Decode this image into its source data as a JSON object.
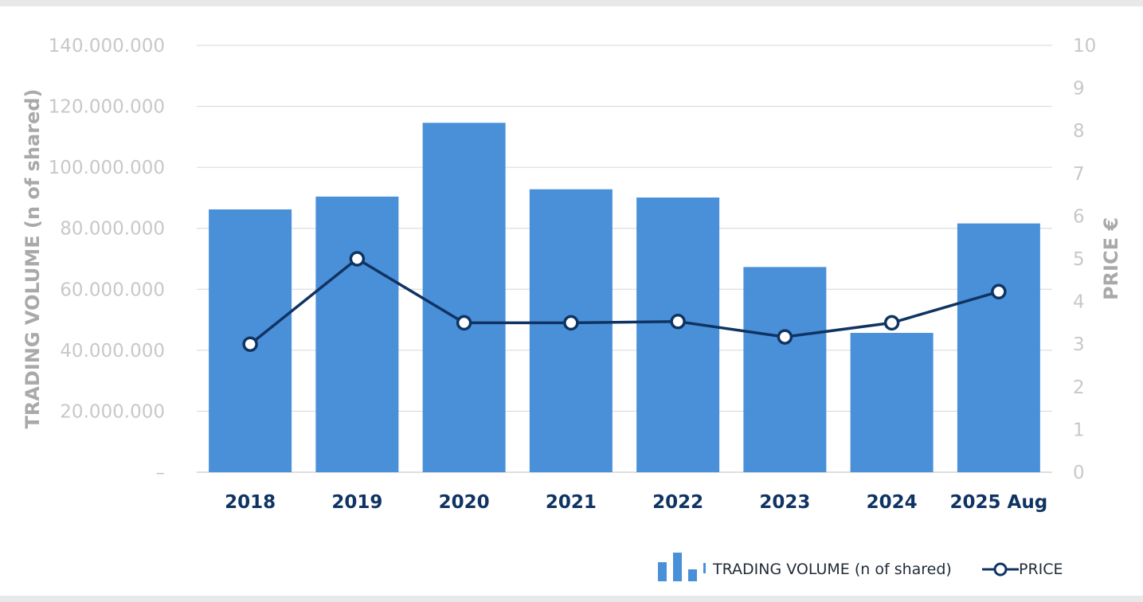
{
  "chart_data": {
    "type": "bar",
    "categories": [
      "2018",
      "2019",
      "2020",
      "2021",
      "2022",
      "2023",
      "2024",
      "2025 Aug"
    ],
    "series": [
      {
        "name": "TRADING  VOLUME (n of shared)",
        "type": "bar",
        "axis": "left",
        "color": "#4a90d9",
        "values": [
          86200000,
          90400000,
          114600000,
          92800000,
          90100000,
          67300000,
          45700000,
          81600000
        ]
      },
      {
        "name": "PRICE",
        "type": "line",
        "axis": "right",
        "color": "#0f3463",
        "values": [
          3.0,
          5.0,
          3.5,
          3.5,
          3.53,
          3.17,
          3.5,
          4.23
        ]
      }
    ],
    "y_left": {
      "title": "TRADING  VOLUME (n of shared)",
      "range": [
        0,
        140000000
      ],
      "tick_labels": [
        "–",
        "20.000.000",
        "40.000.000",
        "60.000.000",
        "80.000.000",
        "100.000.000",
        "120.000.000",
        "140.000.000"
      ]
    },
    "y_right": {
      "title": "PRICE €",
      "range": [
        0,
        10
      ],
      "tick_labels": [
        "0",
        "1",
        "2",
        "3",
        "4",
        "5",
        "6",
        "7",
        "8",
        "9",
        "10"
      ]
    },
    "grid": true,
    "legend": "bottom-right"
  }
}
